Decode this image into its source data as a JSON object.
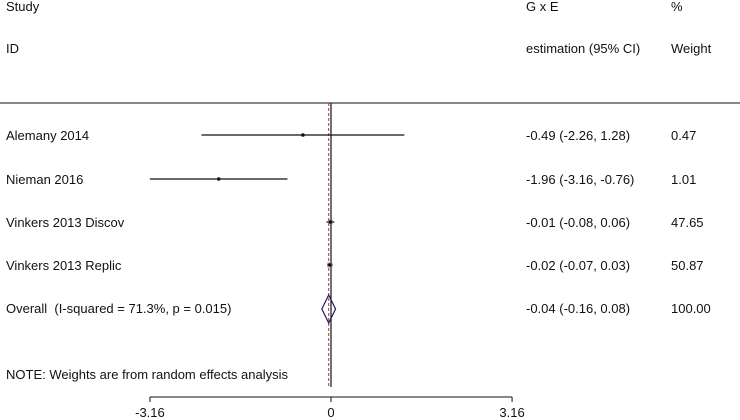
{
  "chart_data": {
    "type": "forest",
    "headers": {
      "study_line1": "Study",
      "study_line2": "ID",
      "effect_line1": "G x E",
      "effect_line2": "estimation (95% CI)",
      "weight_line1": "%",
      "weight_line2": "Weight"
    },
    "studies": [
      {
        "label": "Alemany 2014",
        "estimate": -0.49,
        "ci_low": -2.26,
        "ci_high": 1.28,
        "ci_text": "-0.49 (-2.26, 1.28)",
        "weight_text": "0.47"
      },
      {
        "label": "Nieman 2016",
        "estimate": -1.96,
        "ci_low": -3.16,
        "ci_high": -0.76,
        "ci_text": "-1.96 (-3.16, -0.76)",
        "weight_text": "1.01"
      },
      {
        "label": "Vinkers 2013 Discov",
        "estimate": -0.01,
        "ci_low": -0.08,
        "ci_high": 0.06,
        "ci_text": "-0.01 (-0.08, 0.06)",
        "weight_text": "47.65"
      },
      {
        "label": "Vinkers 2013 Replic",
        "estimate": -0.02,
        "ci_low": -0.07,
        "ci_high": 0.03,
        "ci_text": "-0.02 (-0.07, 0.03)",
        "weight_text": "50.87"
      }
    ],
    "overall": {
      "label": "Overall  (I-squared = 71.3%, p = 0.015)",
      "estimate": -0.04,
      "ci_low": -0.16,
      "ci_high": 0.08,
      "ci_text": "-0.04 (-0.16, 0.08)",
      "weight_text": "100.00"
    },
    "note": "NOTE: Weights are from random effects analysis",
    "x_ticks": [
      {
        "value": -3.16,
        "label": "-3.16"
      },
      {
        "value": 0,
        "label": "0"
      },
      {
        "value": 3.16,
        "label": "3.16"
      }
    ],
    "xlim": [
      -3.16,
      3.16
    ],
    "null_line": 0,
    "colors": {
      "ink": "#111111",
      "diamond": "#1a1f5c",
      "overall_line": "#b0304a"
    }
  }
}
